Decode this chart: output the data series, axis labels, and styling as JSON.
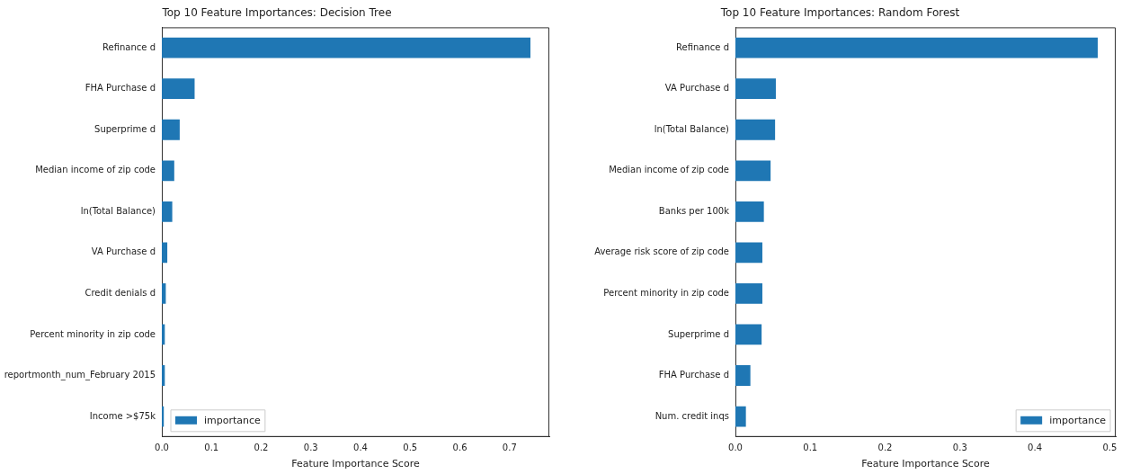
{
  "chart_data": [
    {
      "type": "bar",
      "orientation": "horizontal",
      "title": "Top 10 Feature Importances: Decision Tree",
      "xlabel": "Feature Importance Score",
      "categories": [
        "Refinance d",
        "FHA Purchase d",
        "Superprime d",
        "Median income of zip code",
        "ln(Total Balance)",
        "VA Purchase d",
        "Credit denials d",
        "Percent minority in zip code",
        "reportmonth_num_February 2015",
        "Income >$75k"
      ],
      "series": [
        {
          "name": "importance",
          "color": "#1f77b4",
          "values": [
            0.742,
            0.066,
            0.036,
            0.025,
            0.021,
            0.011,
            0.008,
            0.006,
            0.006,
            0.004
          ]
        }
      ],
      "xlim": [
        0,
        0.78
      ],
      "xticks": [
        {
          "value": 0,
          "label": "0.0"
        },
        0.1,
        0.2,
        0.3,
        0.4,
        0.5,
        0.6,
        0.7
      ],
      "grid": false,
      "legend": "bottom left"
    },
    {
      "type": "bar",
      "orientation": "horizontal",
      "title": "Top 10 Feature Importances: Random Forest",
      "xlabel": "Feature Importance Score",
      "categories": [
        "Refinance d",
        "VA Purchase d",
        "ln(Total Balance)",
        "Median income of zip code",
        "Banks per 100k",
        "Average risk score of zip code",
        "Percent minority in zip code",
        "Superprime d",
        "FHA Purchase d",
        "Num. credit inqs"
      ],
      "series": [
        {
          "name": "importance",
          "color": "#1f77b4",
          "values": [
            0.484,
            0.054,
            0.053,
            0.047,
            0.038,
            0.036,
            0.036,
            0.035,
            0.02,
            0.014
          ]
        }
      ],
      "xlim": [
        0,
        0.508
      ],
      "xticks": [
        {
          "value": 0,
          "label": "0.0"
        },
        0.1,
        0.2,
        0.3,
        0.4,
        0.5
      ],
      "grid": false,
      "legend": "bottom right"
    }
  ]
}
